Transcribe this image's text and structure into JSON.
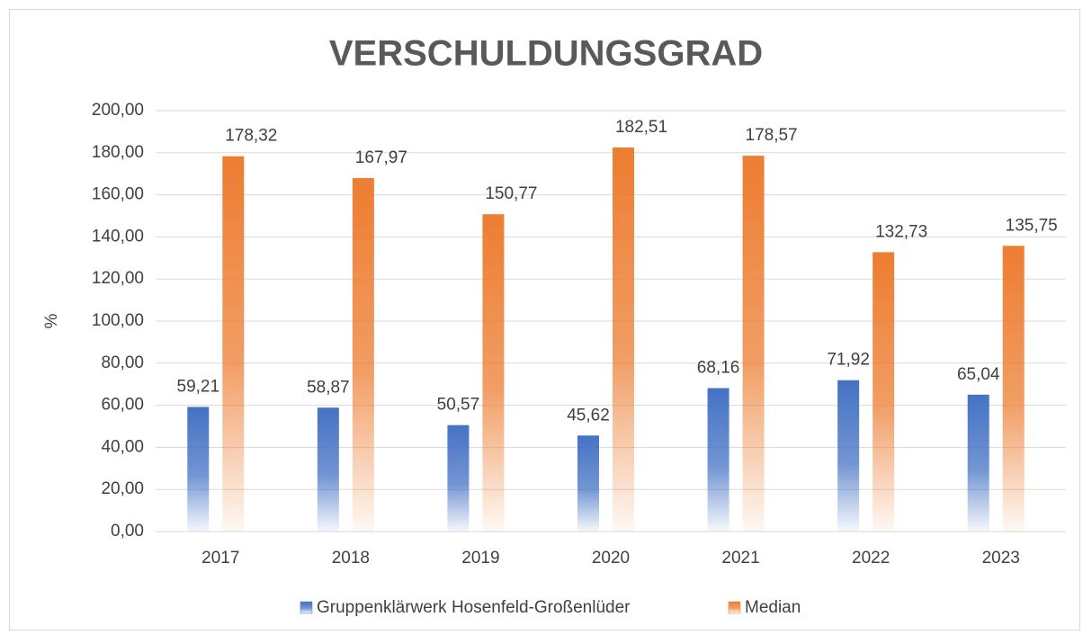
{
  "chart_data": {
    "type": "bar",
    "title": "VERSCHULDUNGSGRAD",
    "y_label": "%",
    "categories": [
      "2017",
      "2018",
      "2019",
      "2020",
      "2021",
      "2022",
      "2023"
    ],
    "series": [
      {
        "name": "Gruppenklärwerk Hosenfeld-Großenlüder",
        "color": "#4472c4",
        "values": [
          59.21,
          58.87,
          50.57,
          45.62,
          68.16,
          71.92,
          65.04
        ],
        "value_labels": [
          "59,21",
          "58,87",
          "50,57",
          "45,62",
          "68,16",
          "71,92",
          "65,04"
        ]
      },
      {
        "name": "Median",
        "color": "#ed7d31",
        "values": [
          178.32,
          167.97,
          150.77,
          182.51,
          178.57,
          132.73,
          135.75
        ],
        "value_labels": [
          "178,32",
          "167,97",
          "150,77",
          "182,51",
          "178,57",
          "132,73",
          "135,75"
        ]
      }
    ],
    "ylim": [
      0,
      200
    ],
    "yticks": [
      {
        "value": 0,
        "label": "0,00"
      },
      {
        "value": 20,
        "label": "20,00"
      },
      {
        "value": 40,
        "label": "40,00"
      },
      {
        "value": 60,
        "label": "60,00"
      },
      {
        "value": 80,
        "label": "80,00"
      },
      {
        "value": 100,
        "label": "100,00"
      },
      {
        "value": 120,
        "label": "120,00"
      },
      {
        "value": 140,
        "label": "140,00"
      },
      {
        "value": 160,
        "label": "160,00"
      },
      {
        "value": 180,
        "label": "180,00"
      },
      {
        "value": 200,
        "label": "200,00"
      }
    ],
    "grid": true,
    "legend": "bottom"
  }
}
